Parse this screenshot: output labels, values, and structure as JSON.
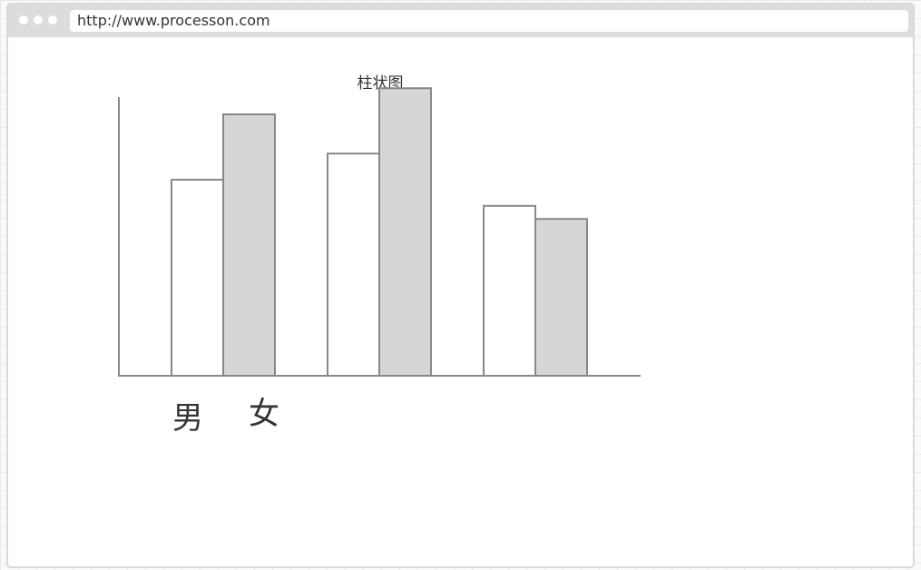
{
  "browser": {
    "url": "http://www.processon.com"
  },
  "chart_data": {
    "type": "bar",
    "title": "柱状图",
    "categories": [
      "",
      "",
      ""
    ],
    "series": [
      {
        "name": "男",
        "values": [
          6.0,
          6.8,
          5.2
        ]
      },
      {
        "name": "女",
        "values": [
          8.0,
          8.8,
          4.8
        ]
      }
    ],
    "ylim": [
      0,
      10
    ],
    "grid": false,
    "legend_position": "bottom-left",
    "colors": {
      "series_fill": [
        "#ffffff",
        "#d6d6d6"
      ],
      "stroke": "#888888",
      "axis": "#888888",
      "text": "#333333"
    }
  }
}
